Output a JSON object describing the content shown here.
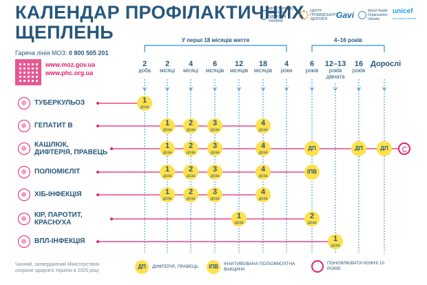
{
  "title": {
    "line1": "КАЛЕНДАР ПРОФІЛАКТИЧНИХ",
    "line2": "ЩЕПЛЕНЬ"
  },
  "logos": [
    {
      "name": "moz-logo",
      "text": "МІНІСТЕРСТВО ОХОРОНИ ЗДОРОВ'Я УКРАЇНИ"
    },
    {
      "name": "phc-logo",
      "text": "ЦЕНТР ГРОМАДСЬКОГО ЗДОРОВ'Я"
    },
    {
      "name": "gavi-logo",
      "text": "Gavi"
    },
    {
      "name": "who-logo",
      "text": "World Health Organization Ukraine"
    },
    {
      "name": "unicef-logo",
      "text": "unicef",
      "sub": "для кожної дитини"
    }
  ],
  "hotline": {
    "label": "Гаряча лінія МОЗ:",
    "number": "0 800 505 201"
  },
  "links": [
    "www.moz.gov.ua",
    "www.phc.org.ua"
  ],
  "groups": [
    {
      "label": "У перші 18 місяців життя",
      "from": 0,
      "to": 6
    },
    {
      "label": "4–16 років",
      "from": 7,
      "to": 10
    }
  ],
  "ages": [
    {
      "n": "2",
      "u": "доба"
    },
    {
      "n": "2",
      "u": "місяці"
    },
    {
      "n": "4",
      "u": "місяці"
    },
    {
      "n": "6",
      "u": "місяців"
    },
    {
      "n": "12",
      "u": "місяців"
    },
    {
      "n": "18",
      "u": "місяців"
    },
    {
      "n": "4",
      "u": "роки"
    },
    {
      "n": "6",
      "u": "років"
    },
    {
      "n": "12–13",
      "u": "років",
      "u2": "дівчата"
    },
    {
      "n": "16",
      "u": "років"
    },
    {
      "n": "Дорослі",
      "u": ""
    }
  ],
  "vaccines": [
    {
      "name": "ТУБЕРКУЛЬОЗ",
      "doses": [
        {
          "col": 0,
          "n": "1",
          "u": "доза"
        }
      ]
    },
    {
      "name": "ГЕПАТИТ В",
      "doses": [
        {
          "col": 1,
          "n": "1",
          "u": "доза"
        },
        {
          "col": 2,
          "n": "2",
          "u": "доза"
        },
        {
          "col": 3,
          "n": "3",
          "u": "доза"
        },
        {
          "col": 5,
          "n": "4",
          "u": "доза"
        }
      ]
    },
    {
      "name": "КАШЛЮК,",
      "name2": "ДИФТЕРІЯ, ПРАВЕЦЬ",
      "renew": true,
      "doses": [
        {
          "col": 1,
          "n": "1",
          "u": "доза"
        },
        {
          "col": 2,
          "n": "2",
          "u": "доза"
        },
        {
          "col": 3,
          "n": "3",
          "u": "доза"
        },
        {
          "col": 5,
          "n": "4",
          "u": "доза"
        },
        {
          "col": 7,
          "n": "ДП",
          "u": "",
          "abbr": true
        },
        {
          "col": 9,
          "n": "ДП",
          "u": "",
          "abbr": true
        },
        {
          "col": 10,
          "n": "ДП",
          "u": "",
          "abbr": true
        }
      ]
    },
    {
      "name": "ПОЛІОМІЄЛІТ",
      "doses": [
        {
          "col": 1,
          "n": "1",
          "u": "доза"
        },
        {
          "col": 2,
          "n": "2",
          "u": "доза"
        },
        {
          "col": 3,
          "n": "3",
          "u": "доза"
        },
        {
          "col": 5,
          "n": "4",
          "u": "доза"
        },
        {
          "col": 7,
          "n": "ІПВ",
          "u": "",
          "abbr": true
        }
      ]
    },
    {
      "name": "ХІБ-ІНФЕКЦІЯ",
      "doses": [
        {
          "col": 1,
          "n": "1",
          "u": "доза"
        },
        {
          "col": 2,
          "n": "2",
          "u": "доза"
        },
        {
          "col": 3,
          "n": "3",
          "u": "доза"
        },
        {
          "col": 5,
          "n": "4",
          "u": "доза"
        }
      ]
    },
    {
      "name": "КІР, ПАРОТИТ,",
      "name2": "КРАСНУХА",
      "doses": [
        {
          "col": 4,
          "n": "1",
          "u": "доза"
        },
        {
          "col": 7,
          "n": "2",
          "u": "доза"
        }
      ]
    },
    {
      "name": "ВПЛ-ІНФЕКЦІЯ",
      "doses": [
        {
          "col": 8,
          "n": "1",
          "u": "доза"
        }
      ]
    }
  ],
  "footer": "Чинний, затверджений Міністерством охорони здоров'я України в 2025 році",
  "legend": [
    {
      "sw": "ДП",
      "text": "ДИФТЕРІЯ, ПРАВЕЦЬ"
    },
    {
      "sw": "ІПВ",
      "text": "ІНАКТИВОВАНА ПОЛІОМІЄЛІТНА ВАКЦИНА"
    },
    {
      "sw": "",
      "text": "ПОНОВЛЮВАТИ КОЖНІ 10 РОКІВ",
      "renew": true
    }
  ],
  "colors": {
    "accent": "#e0206e",
    "navy": "#27577d",
    "dose": "#ffe14d",
    "line": "#2f8fd0"
  }
}
